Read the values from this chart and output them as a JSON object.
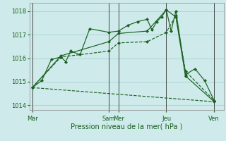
{
  "xlabel": "Pression niveau de la mer( hPa )",
  "bg_color": "#ceeaea",
  "grid_color": "#9fcece",
  "line_color": "#1a6020",
  "ylim": [
    1013.8,
    1018.35
  ],
  "yticks": [
    1014,
    1015,
    1016,
    1017,
    1018
  ],
  "xtick_labels": [
    "Mar",
    "",
    "",
    "",
    "",
    "",
    "",
    "",
    "Sam",
    "Mer",
    "",
    "",
    "",
    "",
    "Jeu",
    "",
    "",
    "",
    "",
    "Ven"
  ],
  "day_positions": [
    0,
    8,
    9,
    14,
    19
  ],
  "day_labels": [
    "Mar",
    "Sam",
    "Mer",
    "Jeu",
    "Ven"
  ],
  "series0": [
    [
      0,
      1014.75
    ],
    [
      1,
      1015.05
    ],
    [
      2,
      1015.95
    ],
    [
      3,
      1016.05
    ],
    [
      3.5,
      1015.85
    ],
    [
      4,
      1016.3
    ],
    [
      5,
      1016.15
    ],
    [
      6,
      1017.25
    ],
    [
      8,
      1017.1
    ],
    [
      9,
      1017.15
    ],
    [
      10,
      1017.4
    ],
    [
      11,
      1017.55
    ],
    [
      12,
      1017.65
    ],
    [
      12.5,
      1017.2
    ],
    [
      13,
      1017.55
    ],
    [
      13.5,
      1017.75
    ],
    [
      14,
      1018.05
    ],
    [
      14.5,
      1017.15
    ],
    [
      15,
      1018.0
    ],
    [
      16,
      1015.3
    ],
    [
      17,
      1015.55
    ],
    [
      18,
      1015.05
    ],
    [
      19,
      1014.2
    ]
  ],
  "series1": [
    [
      0,
      1014.75
    ],
    [
      3,
      1016.05
    ],
    [
      8,
      1016.3
    ],
    [
      9,
      1016.65
    ],
    [
      12,
      1016.7
    ],
    [
      14,
      1017.1
    ],
    [
      15,
      1017.8
    ],
    [
      16,
      1015.45
    ],
    [
      19,
      1014.2
    ]
  ],
  "series2": [
    [
      0,
      1014.75
    ],
    [
      3,
      1016.1
    ],
    [
      8,
      1016.7
    ],
    [
      9,
      1017.05
    ],
    [
      12,
      1017.15
    ],
    [
      14,
      1018.05
    ],
    [
      15,
      1017.75
    ],
    [
      16,
      1015.25
    ],
    [
      19,
      1014.15
    ]
  ],
  "series3": [
    [
      0,
      1014.75
    ],
    [
      19,
      1014.15
    ]
  ]
}
